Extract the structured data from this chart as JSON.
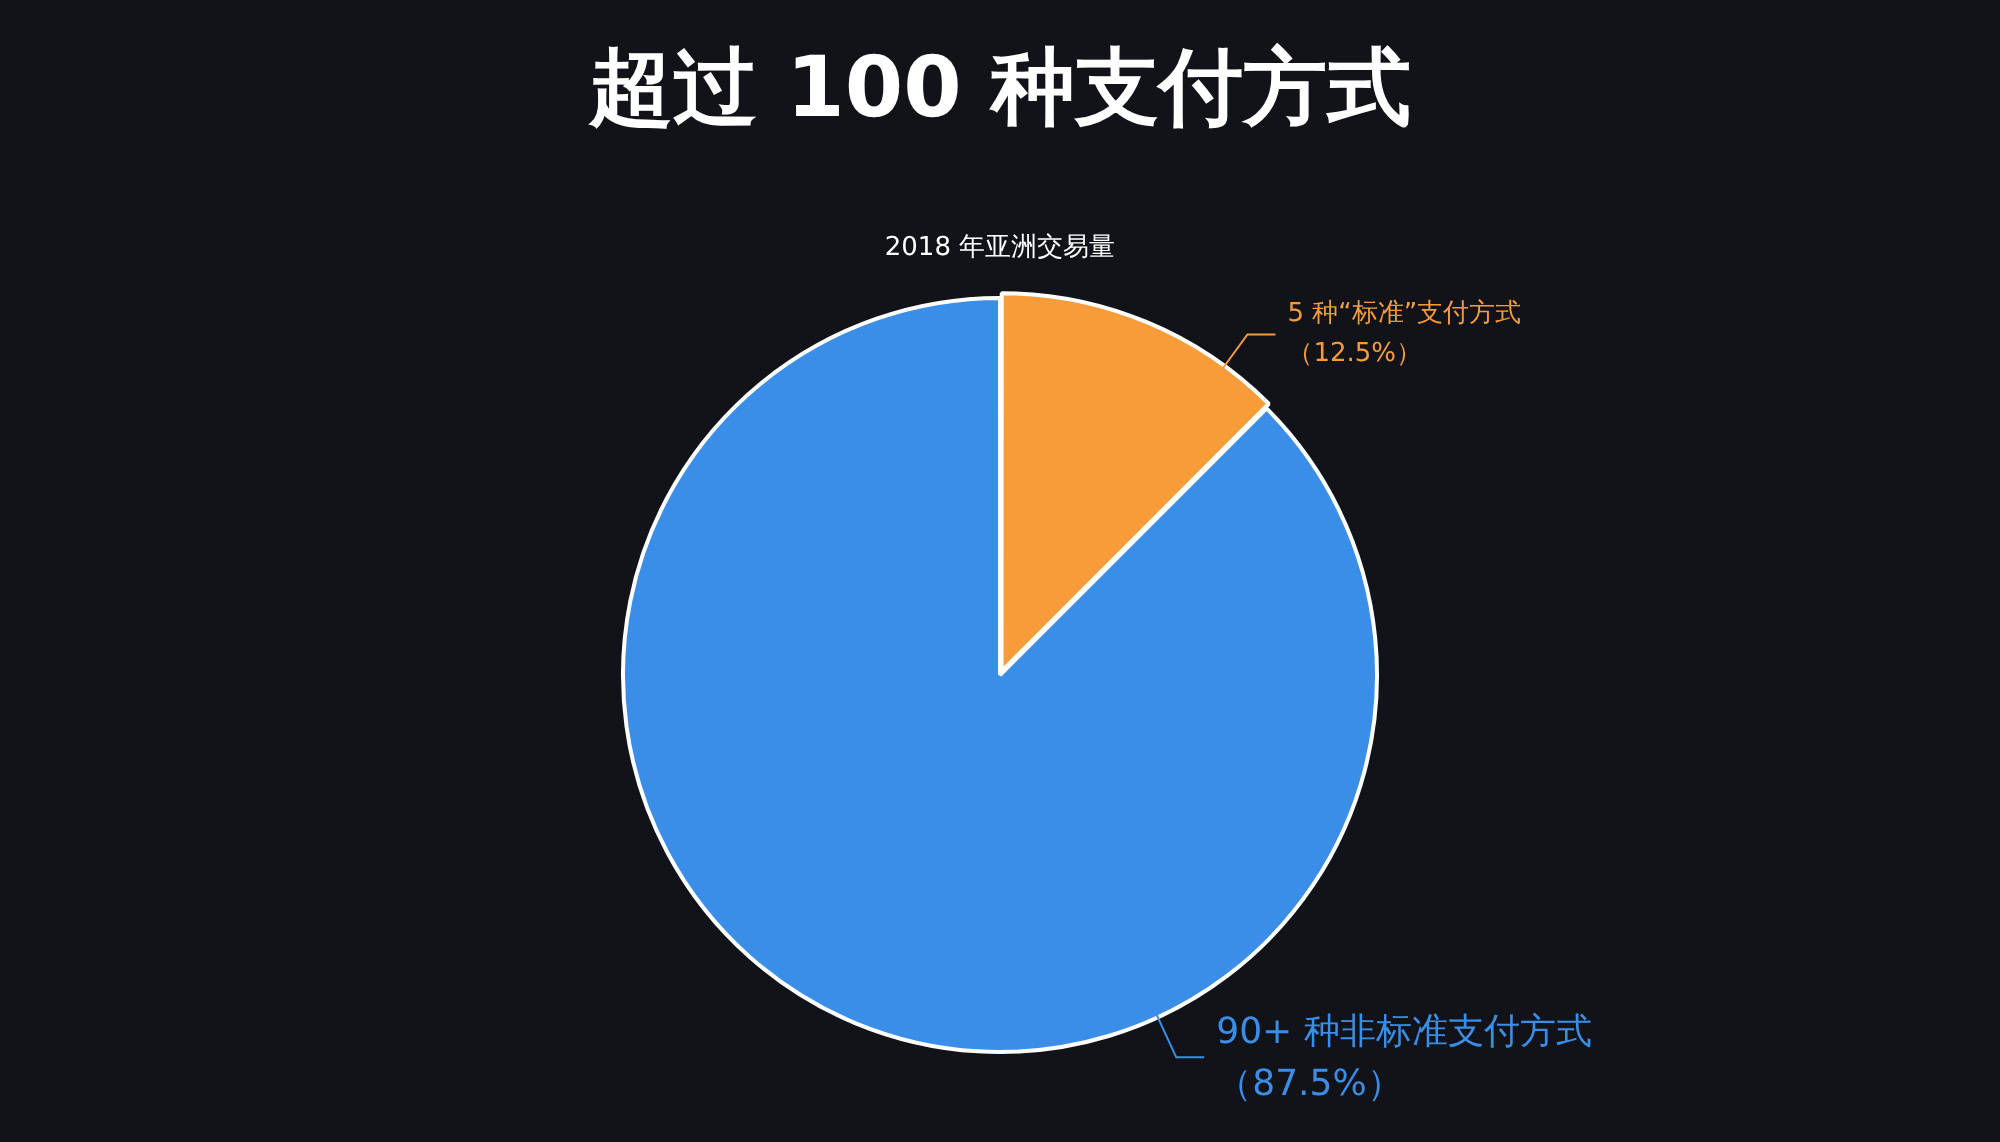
{
  "chart_data": {
    "type": "pie",
    "title": "超过 100 种支付方式",
    "subtitle": "2018 年亚洲交易量",
    "categories": [
      "5 种“标准”支付方式",
      "90+ 种非标准支付方式"
    ],
    "values": [
      12.5,
      87.5
    ],
    "colors": [
      "#f89c3a",
      "#3a8ee8"
    ],
    "value_labels": [
      "（12.5%）",
      "（87.5%）"
    ],
    "legend": false
  }
}
